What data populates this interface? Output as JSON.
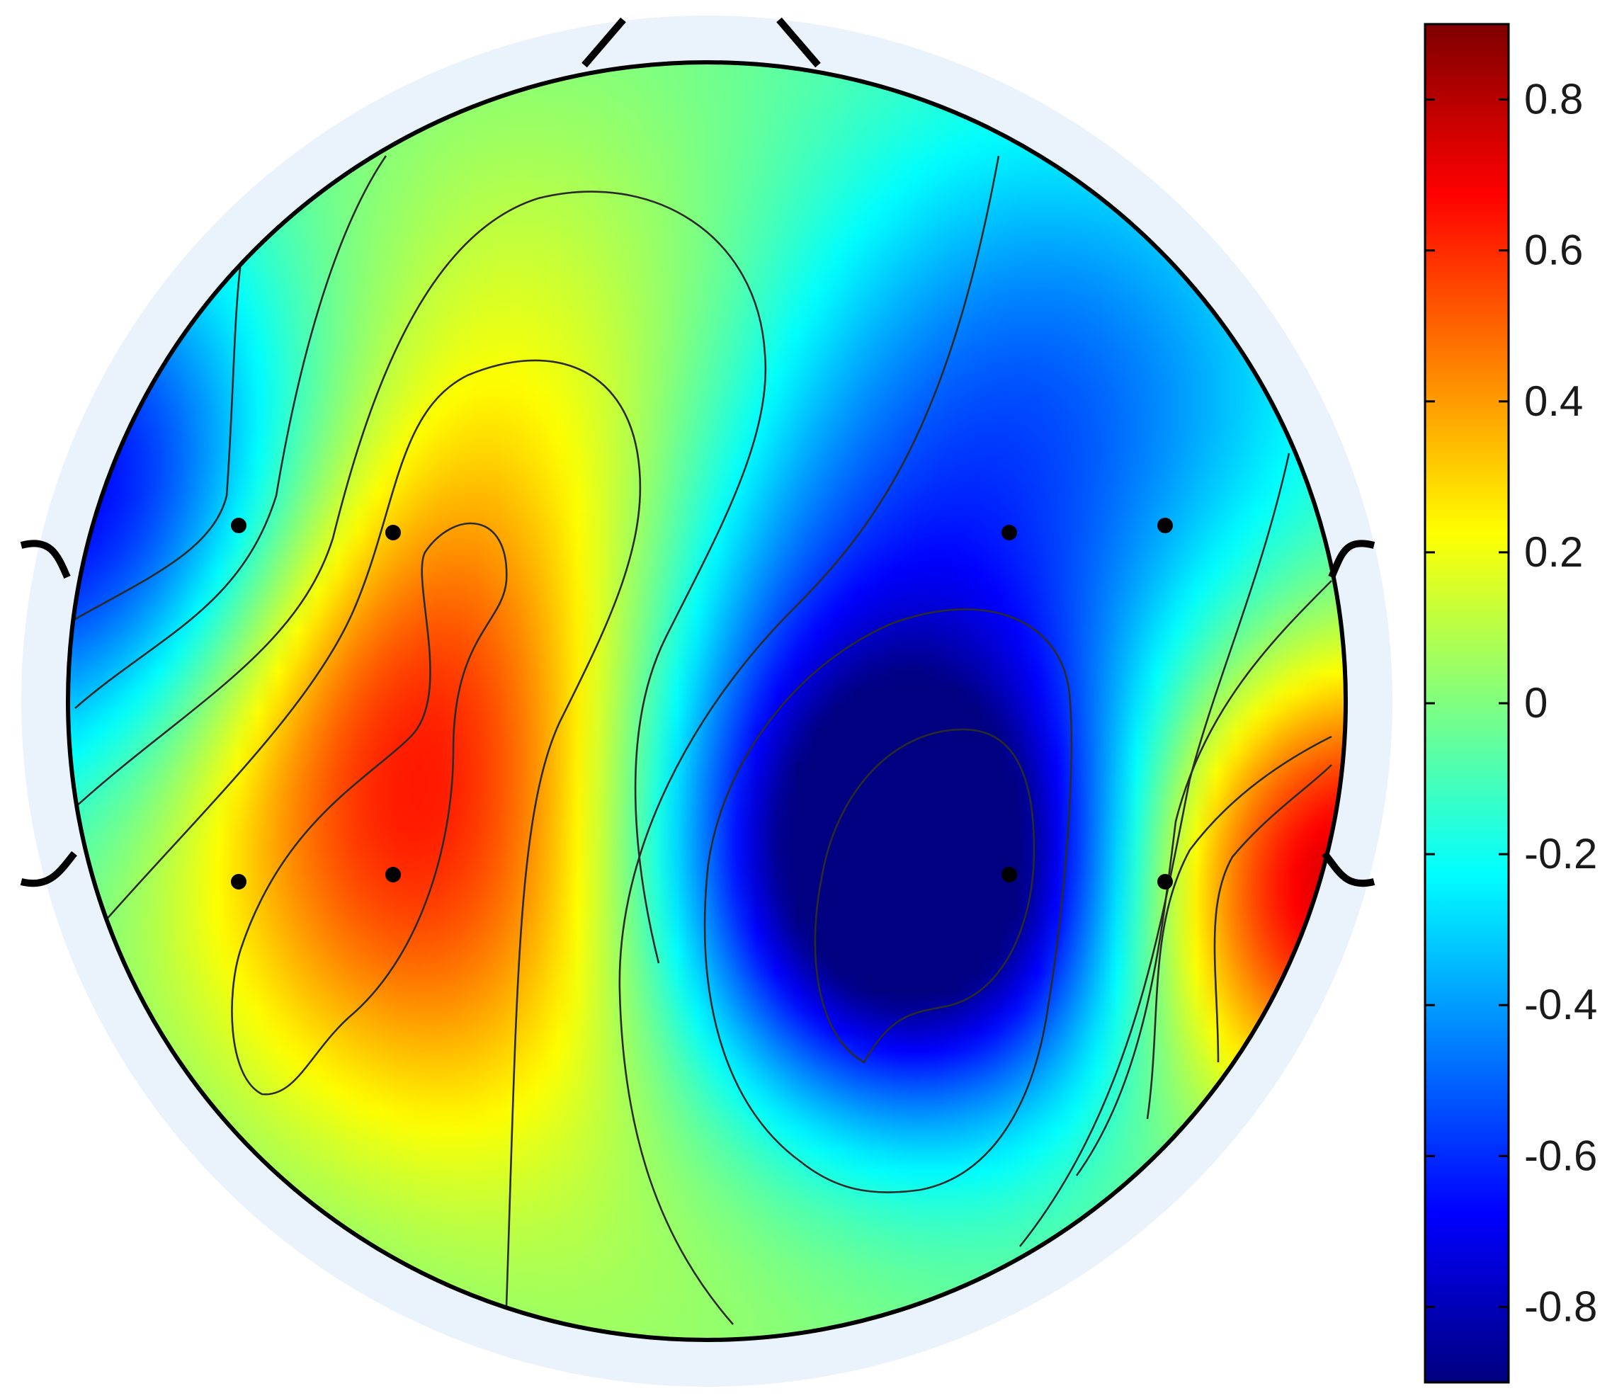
{
  "chart_data": {
    "type": "heatmap",
    "title": "",
    "xlabel": "",
    "ylabel": "",
    "colorbar": {
      "colormap": "jet",
      "range": [
        -0.9,
        0.9
      ],
      "ticks": [
        0.8,
        0.6,
        0.4,
        0.2,
        0,
        -0.2,
        -0.4,
        -0.6,
        -0.8
      ],
      "tick_labels": [
        "0.8",
        "0.6",
        "0.4",
        "0.2",
        "0",
        "-0.2",
        "-0.4",
        "-0.6",
        "-0.8"
      ],
      "placement": "right"
    },
    "extrema": [
      {
        "kind": "min",
        "value": -0.85,
        "region": "right-center"
      },
      {
        "kind": "max",
        "value": 0.55,
        "region": "left-center"
      },
      {
        "kind": "max",
        "value": 0.75,
        "region": "right edge, lower"
      },
      {
        "kind": "min",
        "value": -0.65,
        "region": "left edge, upper"
      }
    ],
    "electrode_count": 8,
    "grid": false,
    "legend": "none"
  },
  "colors": {
    "head_outline": "#000000",
    "head_halo": "#eaf2fb",
    "contour_lines": "#2b2b2b",
    "electrodes": "#000000"
  }
}
